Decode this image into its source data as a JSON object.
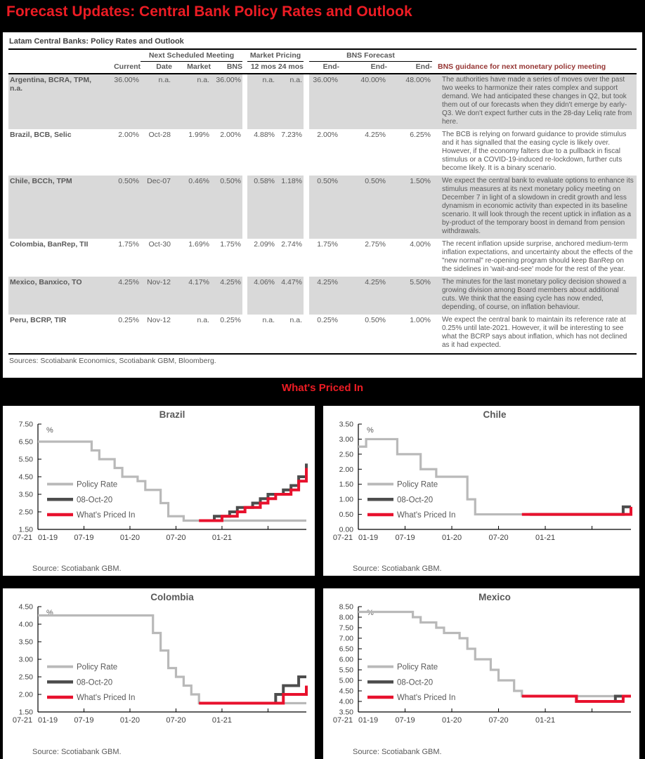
{
  "main_title": "Forecast Updates: Central Bank Policy Rates and Outlook",
  "section_title": "What's Priced In",
  "colors": {
    "accent_red": "#ed1c24",
    "line_red": "#e8112d",
    "line_dark": "#4d4d4d",
    "line_gray": "#b9b9b9",
    "row_shade": "#d9d9d9",
    "text_gray": "#595959",
    "guidance_header": "#963634"
  },
  "table": {
    "title": "Latam Central Banks: Policy Rates and Outlook",
    "group_headers": {
      "meeting": "Next Scheduled Meeting",
      "market_pricing": "Market Pricing",
      "bns_forecast": "BNS Forecast"
    },
    "col_headers": {
      "current": "Current",
      "date": "Date",
      "market": "Market",
      "bns": "BNS",
      "m12": "12 mos",
      "m24": "24 mos",
      "end1": "End-",
      "end2": "End-",
      "end3": "End-",
      "guidance": "BNS guidance for next monetary policy meeting"
    },
    "rows": [
      {
        "name": "Argentina, BCRA, TPM, n.a.",
        "current": "36.00%",
        "date": "n.a.",
        "market": "n.a.",
        "bns": "36.00%",
        "m12": "n.a.",
        "m24": "n.a.",
        "end1": "36.00%",
        "end2": "40.00%",
        "end3": "48.00%",
        "guidance": "The authorities have made a series of moves over the past two weeks to harmonize their rates complex and support demand. We had anticipated these changes in Q2, but took them out of our forecasts when they didn't emerge by early-Q3. We don't expect further cuts in the 28-day Leliq rate from here."
      },
      {
        "name": "Brazil, BCB, Selic",
        "current": "2.00%",
        "date": "Oct-28",
        "market": "1.99%",
        "bns": "2.00%",
        "m12": "4.88%",
        "m24": "7.23%",
        "end1": "2.00%",
        "end2": "4.25%",
        "end3": "6.25%",
        "guidance": "The BCB is relying on forward guidance to provide stimulus and it has signalled that the easing cycle is likely over. However, if the economy falters due to a pullback in fiscal stimulus or a COVID-19-induced re-lockdown, further cuts become likely. It is a binary scenario."
      },
      {
        "name": "Chile, BCCh, TPM",
        "current": "0.50%",
        "date": "Dec-07",
        "market": "0.46%",
        "bns": "0.50%",
        "m12": "0.58%",
        "m24": "1.18%",
        "end1": "0.50%",
        "end2": "0.50%",
        "end3": "1.50%",
        "guidance": "We expect the central bank to evaluate options to enhance its stimulus measures at its next monetary policy meeting on December 7 in light of a slowdown in credit growth and less dynamism in economic activity than expected in its baseline scenario. It will look through the recent uptick in inflation as a by-product of the temporary boost in demand from pension withdrawals."
      },
      {
        "name": "Colombia, BanRep, TII",
        "current": "1.75%",
        "date": "Oct-30",
        "market": "1.69%",
        "bns": "1.75%",
        "m12": "2.09%",
        "m24": "2.74%",
        "end1": "1.75%",
        "end2": "2.75%",
        "end3": "4.00%",
        "guidance": "The recent inflation upside surprise, anchored medium-term inflation expectations, and uncertainty about the effects of the \"new normal\" re-opening program should keep BanRep on the sidelines in 'wait-and-see' mode for the rest of the year."
      },
      {
        "name": "Mexico, Banxico, TO",
        "current": "4.25%",
        "date": "Nov-12",
        "market": "4.17%",
        "bns": "4.25%",
        "m12": "4.06%",
        "m24": "4.47%",
        "end1": "4.25%",
        "end2": "4.25%",
        "end3": "5.50%",
        "guidance": "The minutes for the last monetary policy decision showed a growing division among Board members about additional cuts.  We think that the easing cycle has now ended, depending, of course, on inflation behaviour."
      },
      {
        "name": "Peru, BCRP, TIR",
        "current": "0.25%",
        "date": "Nov-12",
        "market": "n.a.",
        "bns": "0.25%",
        "m12": "n.a.",
        "m24": "n.a.",
        "end1": "0.25%",
        "end2": "0.50%",
        "end3": "1.00%",
        "guidance": "We expect the central bank to maintain its reference rate at 0.25% until late-2021. However, it will be interesting to see what the BCRP says about inflation, which has not declined as it had expected."
      }
    ],
    "sources": "Sources: Scotiabank Economics, Scotiabank GBM, Bloomberg."
  },
  "chart_data": [
    {
      "type": "line",
      "id": "brazil",
      "title": "Brazil",
      "unit": "%",
      "source": "Source: Scotiabank GBM.",
      "ylim": [
        1.5,
        7.5
      ],
      "ystep": 1.0,
      "x_tick_months": [
        0,
        6,
        12,
        18,
        24,
        30
      ],
      "x_tick_labels": [
        "01-19",
        "07-19",
        "01-20",
        "07-20",
        "01-21",
        "07-21"
      ],
      "legend_position": "center-left",
      "grid": false,
      "series": [
        {
          "name": "Policy Rate",
          "role": "policy",
          "start": 0,
          "values": [
            6.5,
            6.5,
            6.5,
            6.5,
            6.5,
            6.5,
            6.5,
            6.0,
            5.5,
            5.5,
            5.0,
            4.5,
            4.5,
            4.25,
            3.75,
            3.75,
            3.0,
            2.25,
            2.25,
            2.0,
            2.0,
            2.0,
            2.0
          ]
        },
        {
          "name": "08-Oct-20",
          "role": "oct08",
          "start": 22,
          "values": [
            2.0,
            2.25,
            2.25,
            2.5,
            2.75,
            2.75,
            3.0,
            3.25,
            3.5,
            3.5,
            3.75,
            4.0,
            4.5,
            5.25
          ]
        },
        {
          "name": "What's Priced In",
          "role": "priced",
          "start": 21,
          "values": [
            2.0,
            2.0,
            2.0,
            2.25,
            2.25,
            2.5,
            2.75,
            2.75,
            3.0,
            3.25,
            3.5,
            3.5,
            3.75,
            4.25,
            5.0
          ]
        }
      ]
    },
    {
      "type": "line",
      "id": "chile",
      "title": "Chile",
      "unit": "%",
      "source": "Source: Scotiabank GBM.",
      "ylim": [
        0.0,
        3.5
      ],
      "ystep": 0.5,
      "x_tick_months": [
        0,
        6,
        12,
        18,
        24,
        30
      ],
      "x_tick_labels": [
        "01-19",
        "07-19",
        "01-20",
        "07-20",
        "01-21",
        "07-21"
      ],
      "legend_position": "center-left",
      "grid": false,
      "series": [
        {
          "name": "Policy Rate",
          "role": "policy",
          "start": 0,
          "values": [
            2.75,
            3.0,
            3.0,
            3.0,
            3.0,
            2.5,
            2.5,
            2.5,
            2.0,
            2.0,
            1.75,
            1.75,
            1.75,
            1.75,
            1.0,
            0.5,
            0.5,
            0.5,
            0.5,
            0.5,
            0.5,
            0.5,
            0.5
          ]
        },
        {
          "name": "08-Oct-20",
          "role": "oct08",
          "start": 22,
          "values": [
            0.5,
            0.5,
            0.5,
            0.5,
            0.5,
            0.5,
            0.5,
            0.5,
            0.5,
            0.5,
            0.5,
            0.5,
            0.75,
            0.75
          ]
        },
        {
          "name": "What's Priced In",
          "role": "priced",
          "start": 21,
          "values": [
            0.5,
            0.5,
            0.5,
            0.5,
            0.5,
            0.5,
            0.5,
            0.5,
            0.5,
            0.5,
            0.5,
            0.5,
            0.5,
            0.5,
            0.75
          ]
        }
      ]
    },
    {
      "type": "line",
      "id": "colombia",
      "title": "Colombia",
      "unit": "%",
      "source": "Source: Scotiabank GBM.",
      "ylim": [
        1.5,
        4.5
      ],
      "ystep": 0.5,
      "x_tick_months": [
        0,
        6,
        12,
        18,
        24,
        30
      ],
      "x_tick_labels": [
        "01-19",
        "07-19",
        "01-20",
        "07-20",
        "01-21",
        "07-21"
      ],
      "legend_position": "center-left",
      "grid": false,
      "series": [
        {
          "name": "Policy Rate",
          "role": "policy",
          "start": 0,
          "values": [
            4.25,
            4.25,
            4.25,
            4.25,
            4.25,
            4.25,
            4.25,
            4.25,
            4.25,
            4.25,
            4.25,
            4.25,
            4.25,
            4.25,
            4.25,
            3.75,
            3.25,
            2.75,
            2.5,
            2.25,
            2.0,
            1.75,
            1.75
          ]
        },
        {
          "name": "08-Oct-20",
          "role": "oct08",
          "start": 22,
          "values": [
            1.75,
            1.75,
            1.75,
            1.75,
            1.75,
            1.75,
            1.75,
            1.75,
            1.75,
            2.0,
            2.25,
            2.25,
            2.5,
            2.5
          ]
        },
        {
          "name": "What's Priced In",
          "role": "priced",
          "start": 21,
          "values": [
            1.75,
            1.75,
            1.75,
            1.75,
            1.75,
            1.75,
            1.75,
            1.75,
            1.75,
            1.75,
            1.75,
            2.0,
            2.0,
            2.0,
            2.25
          ]
        }
      ]
    },
    {
      "type": "line",
      "id": "mexico",
      "title": "Mexico",
      "unit": "%",
      "source": "Source: Scotiabank GBM.",
      "ylim": [
        3.5,
        8.5
      ],
      "ystep": 0.5,
      "x_tick_months": [
        0,
        6,
        12,
        18,
        24,
        30
      ],
      "x_tick_labels": [
        "01-19",
        "07-19",
        "01-20",
        "07-20",
        "01-21",
        "07-21"
      ],
      "legend_position": "center-left",
      "grid": false,
      "series": [
        {
          "name": "Policy Rate",
          "role": "policy",
          "start": 0,
          "values": [
            8.25,
            8.25,
            8.25,
            8.25,
            8.25,
            8.25,
            8.25,
            8.0,
            7.75,
            7.75,
            7.5,
            7.25,
            7.25,
            7.0,
            6.5,
            6.0,
            6.0,
            5.5,
            5.0,
            5.0,
            4.5,
            4.25,
            4.25
          ]
        },
        {
          "name": "08-Oct-20",
          "role": "oct08",
          "start": 22,
          "values": [
            4.25,
            4.25,
            4.25,
            4.25,
            4.25,
            4.25,
            4.0,
            4.0,
            4.0,
            4.0,
            4.0,
            4.25,
            4.25,
            4.25
          ]
        },
        {
          "name": "What's Priced In",
          "role": "priced",
          "start": 21,
          "values": [
            4.25,
            4.25,
            4.25,
            4.25,
            4.25,
            4.25,
            4.25,
            4.0,
            4.0,
            4.0,
            4.0,
            4.0,
            4.0,
            4.25,
            4.25
          ]
        }
      ]
    }
  ]
}
